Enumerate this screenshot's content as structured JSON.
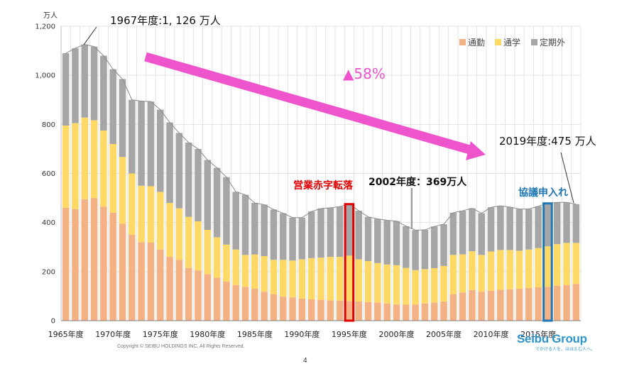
{
  "chart_data": {
    "type": "bar",
    "stacked": true,
    "unit_label": "万人",
    "ylim": [
      0,
      1200
    ],
    "yticks": [
      0,
      200,
      400,
      600,
      800,
      1000,
      1200
    ],
    "ytick_labels": [
      "0",
      "200",
      "400",
      "600",
      "800",
      "1,000",
      "1,200"
    ],
    "x_tick_labels": [
      "1965年度",
      "1970年度",
      "1975年度",
      "1980年度",
      "1985年度",
      "1990年度",
      "1995年度",
      "2000年度",
      "2005年度",
      "2010年度",
      "2015年度"
    ],
    "years": [
      1965,
      1966,
      1967,
      1968,
      1969,
      1970,
      1971,
      1972,
      1973,
      1974,
      1975,
      1976,
      1977,
      1978,
      1979,
      1980,
      1981,
      1982,
      1983,
      1984,
      1985,
      1986,
      1987,
      1988,
      1989,
      1990,
      1991,
      1992,
      1993,
      1994,
      1995,
      1996,
      1997,
      1998,
      1999,
      2000,
      2001,
      2002,
      2003,
      2004,
      2005,
      2006,
      2007,
      2008,
      2009,
      2010,
      2011,
      2012,
      2013,
      2014,
      2015,
      2016,
      2017,
      2018,
      2019
    ],
    "series": [
      {
        "name": "通勤",
        "color": "#f4b183",
        "values": [
          460,
          455,
          495,
          500,
          465,
          440,
          395,
          350,
          320,
          318,
          290,
          260,
          248,
          215,
          205,
          190,
          175,
          160,
          145,
          138,
          130,
          118,
          108,
          98,
          95,
          90,
          87,
          85,
          83,
          82,
          80,
          78,
          76,
          74,
          70,
          66,
          65,
          66,
          70,
          74,
          78,
          108,
          115,
          125,
          118,
          122,
          126,
          128,
          130,
          133,
          136,
          138,
          142,
          145,
          150
        ]
      },
      {
        "name": "通学",
        "color": "#ffd966",
        "values": [
          335,
          350,
          333,
          317,
          310,
          280,
          272,
          250,
          230,
          230,
          235,
          220,
          210,
          208,
          200,
          180,
          165,
          150,
          145,
          130,
          140,
          145,
          140,
          150,
          150,
          160,
          168,
          172,
          177,
          178,
          185,
          172,
          167,
          161,
          159,
          160,
          150,
          140,
          140,
          140,
          145,
          160,
          155,
          158,
          150,
          160,
          162,
          160,
          155,
          157,
          160,
          165,
          170,
          172,
          167
        ]
      },
      {
        "name": "定期外",
        "color": "#a6a6a6",
        "values": [
          295,
          305,
          298,
          300,
          305,
          305,
          318,
          300,
          345,
          345,
          335,
          328,
          307,
          303,
          295,
          285,
          283,
          275,
          235,
          245,
          210,
          210,
          205,
          190,
          175,
          170,
          190,
          200,
          200,
          205,
          210,
          198,
          180,
          180,
          180,
          180,
          170,
          163,
          160,
          170,
          170,
          172,
          178,
          175,
          170,
          180,
          180,
          175,
          170,
          165,
          170,
          175,
          170,
          165,
          158
        ]
      }
    ],
    "annotations": {
      "peak": "1967年度:1, 126 万人",
      "decline": "▲58%",
      "deficit": "営業赤字転落",
      "y2002": "2002年度：369万人",
      "agreement": "協議申入れ",
      "y2019": "2019年度:475 万人"
    },
    "highlighted_years": [
      1995,
      2016
    ],
    "legend_position": "top-right"
  },
  "footer": {
    "copyright": "Copyright © SEIBU HOLDINGS INC. All Rights Reserved.",
    "page_number": "4"
  },
  "logo": {
    "name": "Seibu Group",
    "tagline": "でかける人を、ほほえむ人へ。"
  },
  "colors": {
    "arrow": "#ee55cc",
    "decline_text": "#ee55cc",
    "deficit": "#e00000",
    "agreement": "#1f77b4",
    "brand": "#2f95c8"
  }
}
